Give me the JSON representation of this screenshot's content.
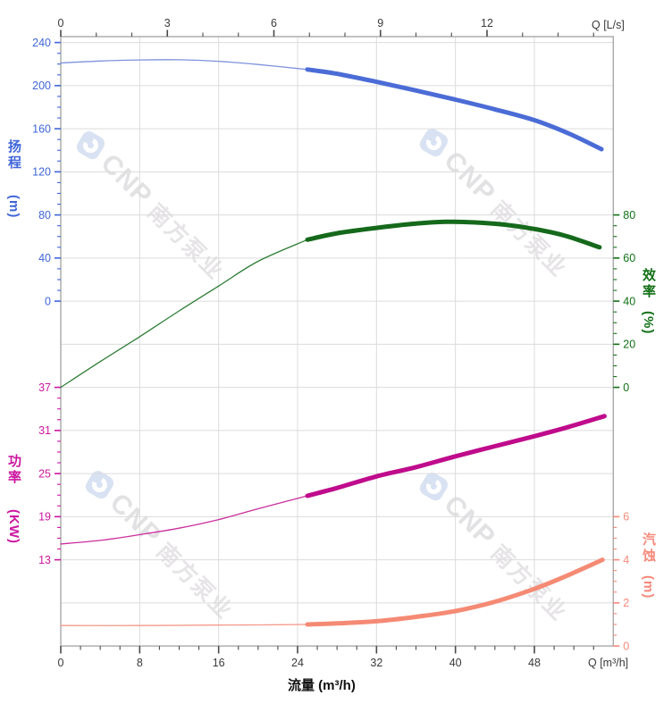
{
  "watermark": {
    "brand": "CNP",
    "brand_cn": "南方泵业"
  },
  "axes": {
    "top": {
      "unit_label": "Q [L/s]",
      "ticks": [
        0,
        3,
        6,
        9,
        12
      ],
      "minor_step": 1,
      "color": "#3a3a3a"
    },
    "bottom": {
      "unit_label": "Q [m³/h]",
      "title": "流量 (m³/h)",
      "ticks": [
        0,
        8,
        16,
        24,
        32,
        40,
        48
      ],
      "minor_step": 2,
      "color": "#3a3a3a"
    },
    "head": {
      "name": "扬程",
      "unit": "(m)",
      "ticks": [
        240,
        200,
        160,
        120,
        80,
        40,
        0
      ],
      "minor_step": 10,
      "color": "#4166d9"
    },
    "efficiency": {
      "name": "效率",
      "unit": "(%)",
      "ticks": [
        80,
        60,
        40,
        20,
        0
      ],
      "minor_step": 5,
      "color": "#127016"
    },
    "power": {
      "name": "功率",
      "unit": "(KW)",
      "ticks": [
        37,
        31,
        25,
        19,
        13
      ],
      "minor_step": 1.5,
      "color": "#cb17a0"
    },
    "npsh": {
      "name": "汽蚀",
      "unit": "(m)",
      "ticks": [
        6,
        4,
        2,
        0
      ],
      "minor_step": 0.5,
      "color": "#f5897a"
    }
  },
  "chart_data": {
    "type": "line",
    "title": "",
    "x_axis_bottom": {
      "label": "流量 (m³/h)",
      "unit_label": "Q [m³/h]",
      "ticks": [
        0,
        8,
        16,
        24,
        32,
        40,
        48
      ],
      "range": [
        0,
        55.9
      ]
    },
    "x_axis_top": {
      "unit_label": "Q [L/s]",
      "ticks": [
        0,
        3,
        6,
        9,
        12
      ],
      "range": [
        0,
        15.5
      ]
    },
    "grid": true,
    "legend": "none",
    "duty_range_start_q": 25,
    "series": [
      {
        "id": "head",
        "name": "扬程",
        "axis": "head",
        "unit": "m",
        "color_thin": "#7d92dc",
        "color_thick": "#4b6cd6",
        "points": [
          [
            0,
            221
          ],
          [
            4,
            222.8
          ],
          [
            8,
            223.8
          ],
          [
            12,
            224
          ],
          [
            16,
            222.6
          ],
          [
            20,
            219.6
          ],
          [
            25,
            215
          ],
          [
            28,
            211
          ],
          [
            32,
            203.5
          ],
          [
            36,
            195.5
          ],
          [
            40,
            187
          ],
          [
            44,
            178
          ],
          [
            48,
            168
          ],
          [
            51.5,
            155.5
          ],
          [
            54.8,
            141
          ]
        ]
      },
      {
        "id": "efficiency",
        "name": "效率",
        "axis": "efficiency",
        "unit": "%",
        "color_thin": "#2e7d35",
        "color_thick": "#15691b",
        "points": [
          [
            0,
            0
          ],
          [
            4,
            12
          ],
          [
            8,
            23.5
          ],
          [
            12,
            35.5
          ],
          [
            16,
            47
          ],
          [
            20,
            58.5
          ],
          [
            25,
            68.5
          ],
          [
            28,
            71.5
          ],
          [
            32,
            74
          ],
          [
            36,
            76
          ],
          [
            39,
            76.8
          ],
          [
            42,
            76.5
          ],
          [
            45,
            75.5
          ],
          [
            48,
            73.5
          ],
          [
            51,
            70.5
          ],
          [
            54.6,
            65
          ]
        ]
      },
      {
        "id": "power",
        "name": "功率",
        "axis": "power",
        "unit": "KW",
        "color_thin": "#cb2f9e",
        "color_thick": "#bf0b8c",
        "points": [
          [
            0,
            15.2
          ],
          [
            4,
            15.7
          ],
          [
            8,
            16.5
          ],
          [
            12,
            17.4
          ],
          [
            16,
            18.6
          ],
          [
            20,
            20.1
          ],
          [
            25,
            21.9
          ],
          [
            28,
            23
          ],
          [
            32,
            24.6
          ],
          [
            36,
            25.9
          ],
          [
            40,
            27.4
          ],
          [
            44,
            28.8
          ],
          [
            48,
            30.2
          ],
          [
            51.5,
            31.5
          ],
          [
            55.1,
            33
          ]
        ]
      },
      {
        "id": "npsh",
        "name": "汽蚀",
        "axis": "npsh",
        "unit": "m",
        "color_thin": "#f59a8b",
        "color_thick": "#f58a74",
        "points": [
          [
            0,
            0.95
          ],
          [
            8,
            0.95
          ],
          [
            16,
            0.97
          ],
          [
            20,
            0.98
          ],
          [
            25,
            1.0
          ],
          [
            28,
            1.05
          ],
          [
            32,
            1.15
          ],
          [
            36,
            1.35
          ],
          [
            40,
            1.62
          ],
          [
            44,
            2.05
          ],
          [
            48,
            2.65
          ],
          [
            51,
            3.2
          ],
          [
            54.9,
            4.0
          ]
        ]
      }
    ]
  }
}
